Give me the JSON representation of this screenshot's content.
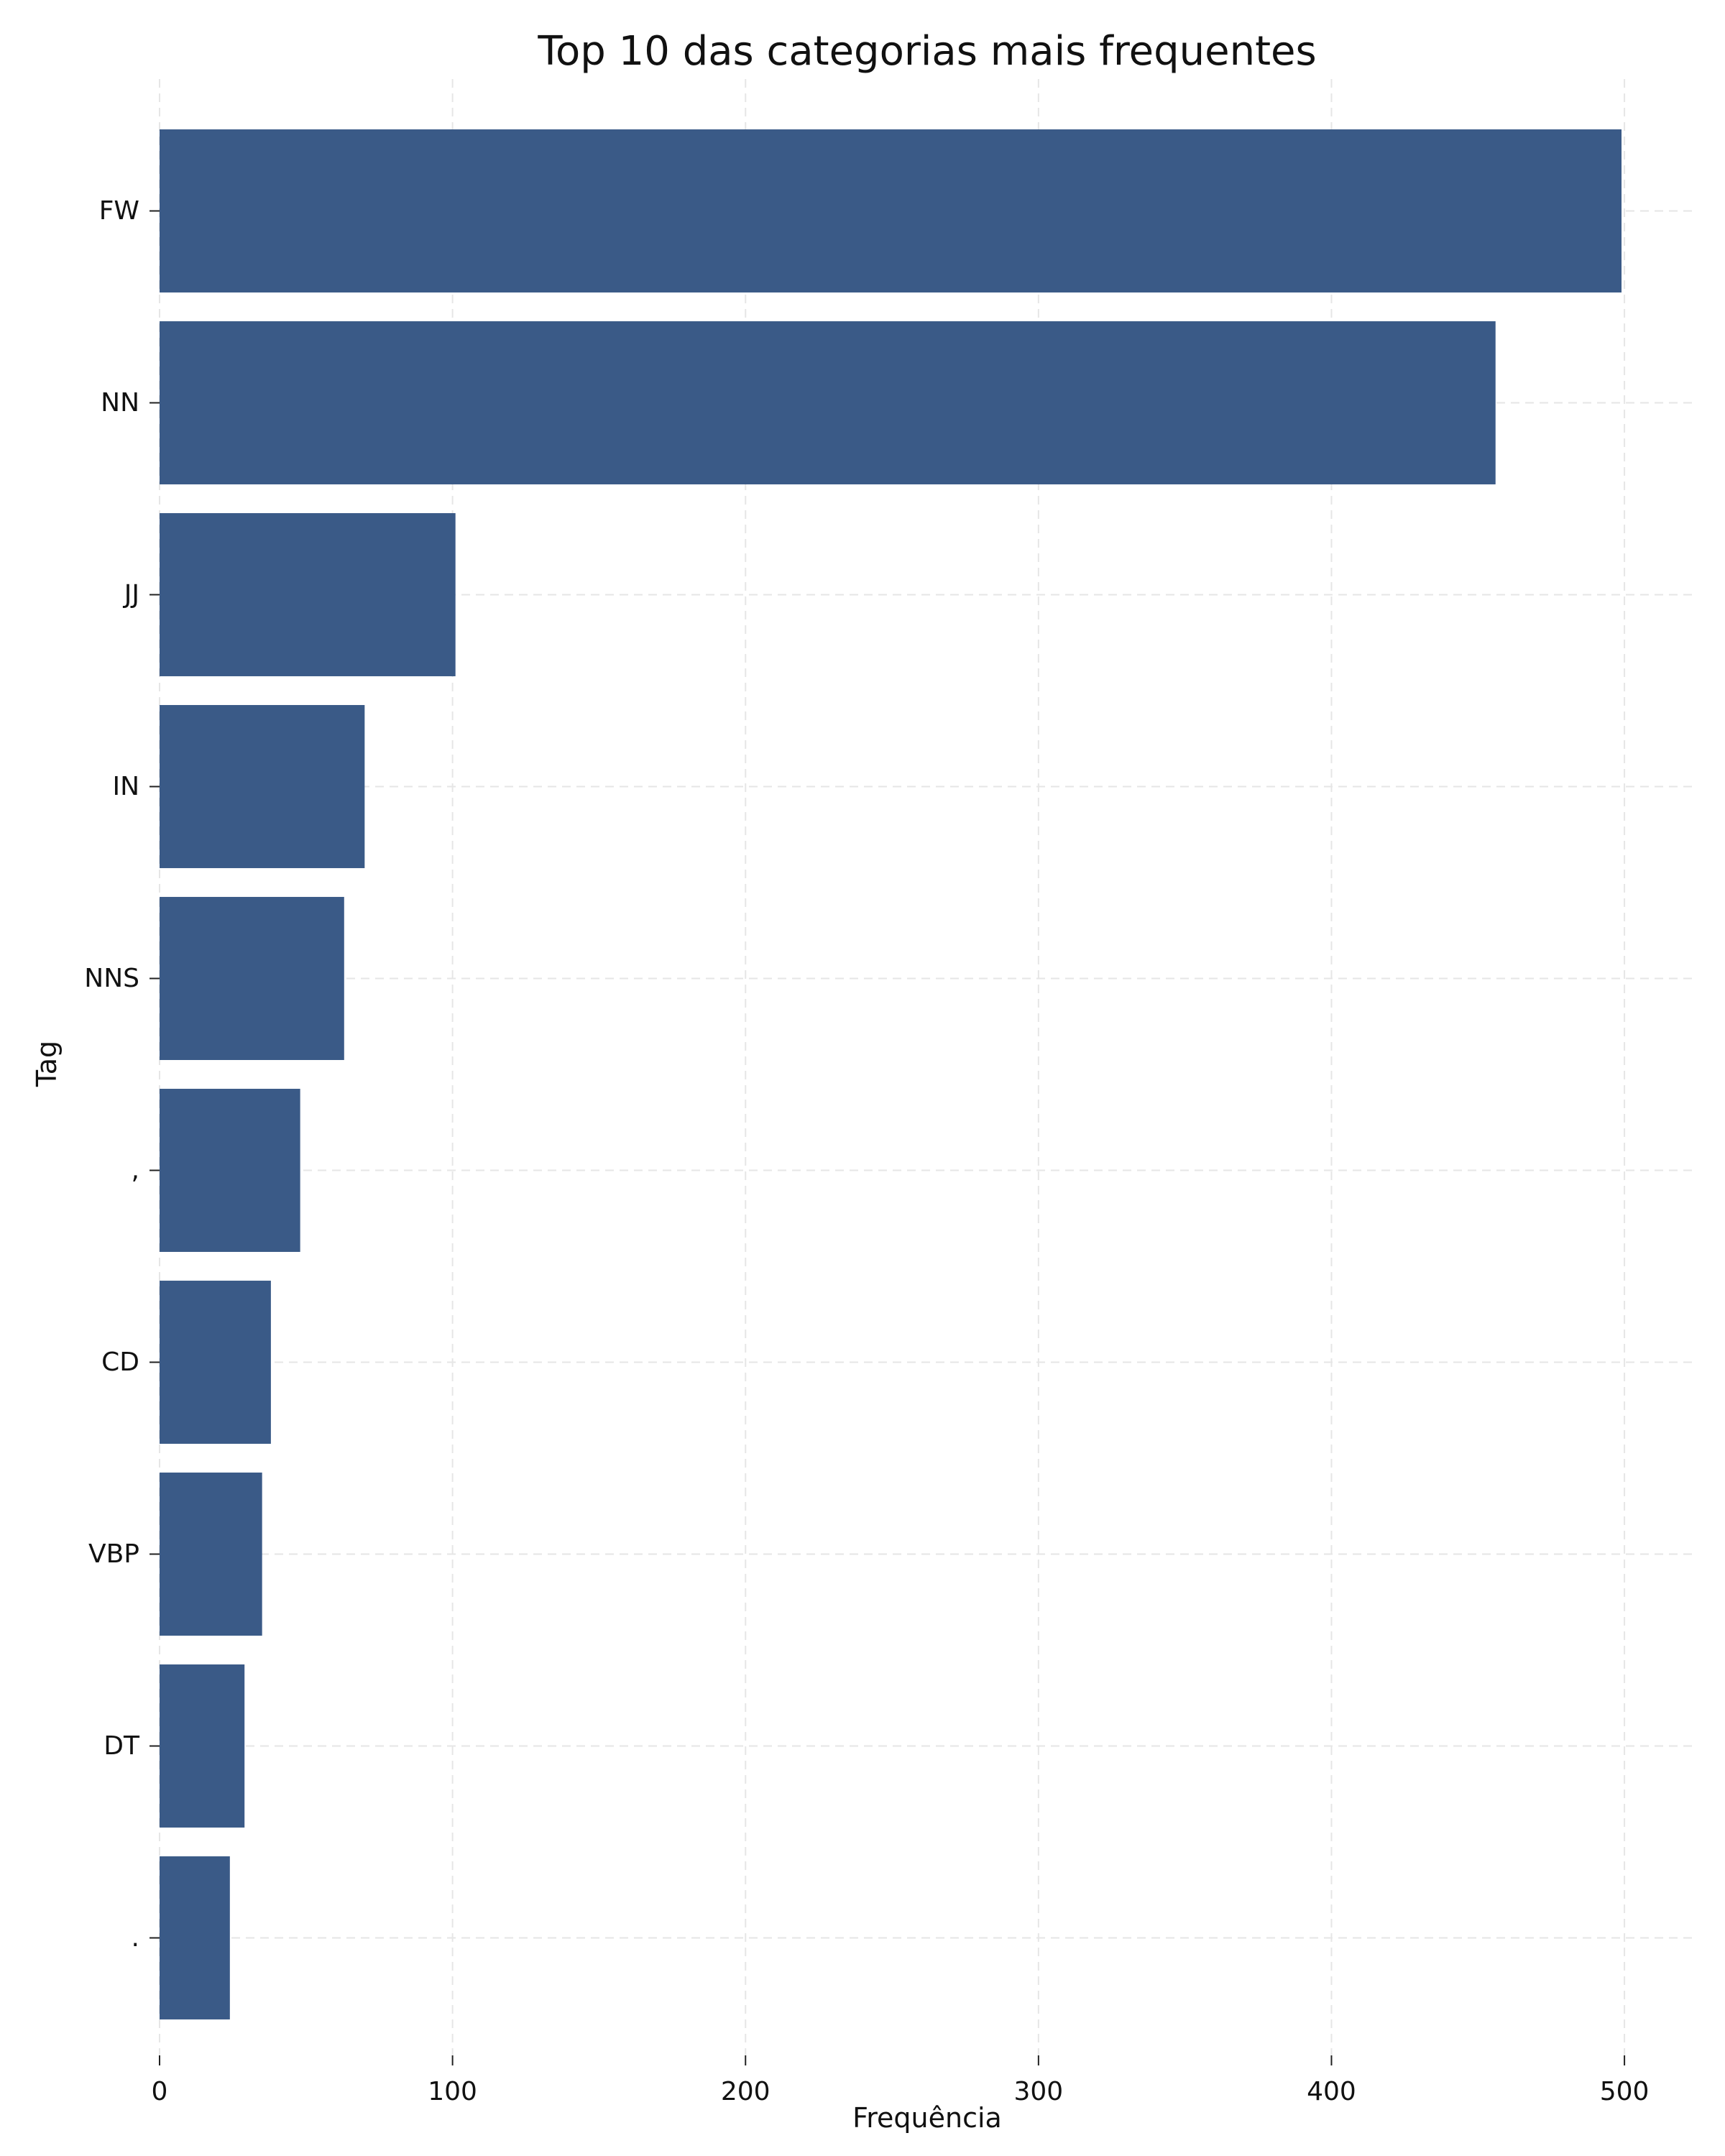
{
  "chart_data": {
    "type": "bar",
    "orientation": "horizontal",
    "title": "Top 10 das categorias mais frequentes",
    "xlabel": "Frequência",
    "ylabel": "Tag",
    "categories": [
      "FW",
      "NN",
      "JJ",
      "IN",
      "NNS",
      ",",
      "CD",
      "VBP",
      "DT",
      "."
    ],
    "values": [
      499,
      456,
      101,
      70,
      63,
      48,
      38,
      35,
      29,
      24
    ],
    "xlim": [
      0,
      525
    ],
    "xticks": [
      0,
      100,
      200,
      300,
      400,
      500
    ],
    "xtick_labels": [
      "0",
      "100",
      "200",
      "300",
      "400",
      "500"
    ],
    "grid": true,
    "bar_color": "#3a5a87",
    "grid_color": "#e6e6e6"
  }
}
